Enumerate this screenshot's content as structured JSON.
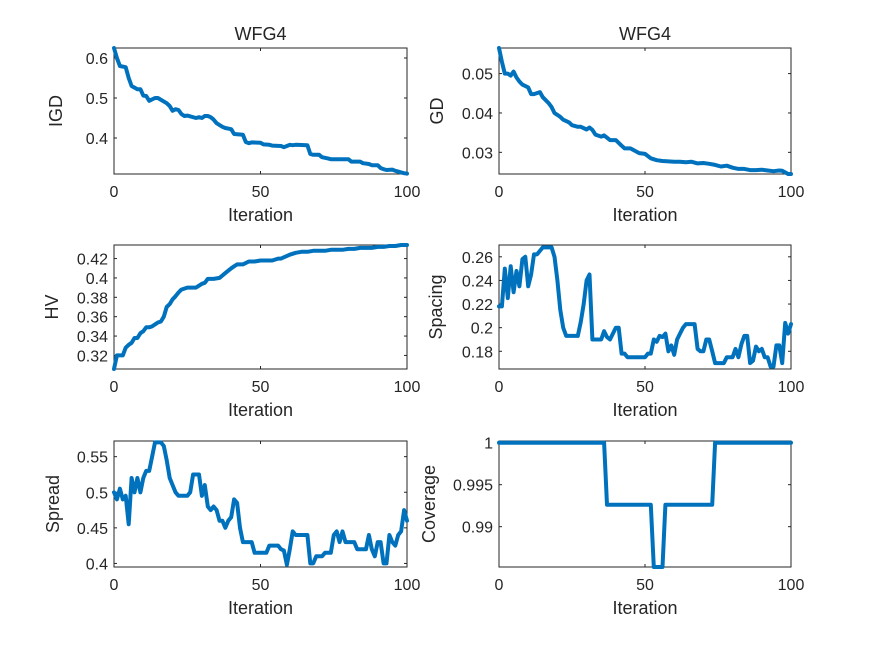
{
  "figure": {
    "background": "#ffffff",
    "line_color": "#0072BD",
    "axis_color": "#262626"
  },
  "chart_data": [
    {
      "type": "line",
      "title": "WFG4",
      "xlabel": "Iteration",
      "ylabel": "IGD",
      "xlim": [
        0,
        100
      ],
      "ylim": [
        0.31,
        0.625
      ],
      "xticks": [
        0,
        50,
        100
      ],
      "yticks": [
        0.4,
        0.5,
        0.6
      ],
      "ytick_labels": [
        "0.4",
        "0.5",
        "0.6"
      ],
      "series": [
        {
          "x": [
            0,
            1,
            2,
            4,
            5,
            6,
            8,
            9,
            10,
            11,
            12,
            14,
            15,
            18,
            19,
            20,
            21,
            22,
            23,
            24,
            25,
            28,
            29,
            30,
            31,
            32,
            33,
            34,
            35,
            37,
            38,
            40,
            41,
            44,
            45,
            46,
            47,
            50,
            51,
            53,
            54,
            57,
            58,
            59,
            60,
            61,
            62,
            66,
            67,
            68,
            70,
            71,
            73,
            74,
            75,
            80,
            81,
            84,
            85,
            87,
            88,
            90,
            91,
            92,
            93,
            95,
            96,
            97,
            98,
            99,
            100
          ],
          "y": [
            0.625,
            0.6,
            0.58,
            0.577,
            0.55,
            0.53,
            0.522,
            0.522,
            0.506,
            0.505,
            0.493,
            0.5,
            0.5,
            0.487,
            0.48,
            0.468,
            0.472,
            0.47,
            0.46,
            0.455,
            0.456,
            0.45,
            0.452,
            0.45,
            0.455,
            0.455,
            0.452,
            0.446,
            0.437,
            0.428,
            0.425,
            0.422,
            0.41,
            0.408,
            0.39,
            0.387,
            0.389,
            0.388,
            0.384,
            0.383,
            0.381,
            0.38,
            0.377,
            0.38,
            0.383,
            0.382,
            0.383,
            0.382,
            0.36,
            0.358,
            0.358,
            0.352,
            0.349,
            0.347,
            0.347,
            0.347,
            0.341,
            0.341,
            0.337,
            0.335,
            0.332,
            0.332,
            0.325,
            0.322,
            0.32,
            0.321,
            0.318,
            0.316,
            0.314,
            0.312,
            0.311
          ]
        }
      ]
    },
    {
      "type": "line",
      "title": "WFG4",
      "xlabel": "Iteration",
      "ylabel": "GD",
      "xlim": [
        0,
        100
      ],
      "ylim": [
        0.0245,
        0.0565
      ],
      "xticks": [
        0,
        50,
        100
      ],
      "yticks": [
        0.03,
        0.04,
        0.05
      ],
      "ytick_labels": [
        "0.03",
        "0.04",
        "0.05"
      ],
      "series": [
        {
          "x": [
            0,
            1,
            2,
            3,
            4,
            5,
            6,
            7,
            8,
            10,
            11,
            12,
            14,
            15,
            17,
            18,
            19,
            20,
            21,
            22,
            24,
            25,
            27,
            28,
            30,
            31,
            32,
            33,
            35,
            36,
            38,
            40,
            42,
            43,
            45,
            48,
            50,
            52,
            54,
            56,
            58,
            60,
            62,
            64,
            66,
            68,
            70,
            72,
            74,
            76,
            78,
            80,
            82,
            84,
            86,
            88,
            90,
            92,
            94,
            96,
            97,
            98,
            99,
            100
          ],
          "y": [
            0.0565,
            0.053,
            0.05,
            0.05,
            0.0495,
            0.0505,
            0.049,
            0.048,
            0.0472,
            0.0465,
            0.0448,
            0.0448,
            0.0453,
            0.044,
            0.0425,
            0.0415,
            0.04,
            0.0395,
            0.039,
            0.0383,
            0.0376,
            0.0369,
            0.0365,
            0.0365,
            0.0358,
            0.0363,
            0.0357,
            0.0345,
            0.034,
            0.0343,
            0.0331,
            0.0331,
            0.0317,
            0.031,
            0.031,
            0.0298,
            0.0296,
            0.0285,
            0.028,
            0.0278,
            0.0277,
            0.0276,
            0.0276,
            0.0275,
            0.0276,
            0.0272,
            0.0273,
            0.0271,
            0.0268,
            0.0264,
            0.0266,
            0.0261,
            0.0258,
            0.0258,
            0.0255,
            0.0255,
            0.0256,
            0.0254,
            0.0252,
            0.0254,
            0.0253,
            0.0249,
            0.0245,
            0.0245
          ]
        }
      ]
    },
    {
      "type": "line",
      "title": "",
      "xlabel": "Iteration",
      "ylabel": "HV",
      "xlim": [
        0,
        100
      ],
      "ylim": [
        0.306,
        0.434
      ],
      "xticks": [
        0,
        50,
        100
      ],
      "yticks": [
        0.32,
        0.34,
        0.36,
        0.38,
        0.4,
        0.42
      ],
      "ytick_labels": [
        "0.32",
        "0.34",
        "0.36",
        "0.38",
        "0.4",
        "0.42"
      ],
      "series": [
        {
          "x": [
            0,
            1,
            2,
            3,
            4,
            5,
            6,
            7,
            8,
            9,
            10,
            11,
            12,
            13,
            14,
            15,
            16,
            17,
            18,
            19,
            20,
            21,
            22,
            23,
            25,
            26,
            28,
            30,
            31,
            32,
            34,
            36,
            38,
            40,
            41,
            42,
            44,
            46,
            48,
            50,
            52,
            54,
            56,
            57,
            60,
            62,
            64,
            66,
            68,
            70,
            72,
            74,
            76,
            78,
            80,
            82,
            84,
            86,
            88,
            90,
            92,
            94,
            96,
            98,
            100
          ],
          "y": [
            0.306,
            0.32,
            0.32,
            0.32,
            0.328,
            0.331,
            0.333,
            0.338,
            0.338,
            0.343,
            0.345,
            0.349,
            0.349,
            0.35,
            0.352,
            0.354,
            0.355,
            0.36,
            0.37,
            0.373,
            0.378,
            0.381,
            0.385,
            0.388,
            0.39,
            0.39,
            0.39,
            0.394,
            0.395,
            0.399,
            0.399,
            0.4,
            0.405,
            0.41,
            0.412,
            0.414,
            0.414,
            0.417,
            0.417,
            0.418,
            0.418,
            0.418,
            0.42,
            0.42,
            0.424,
            0.426,
            0.427,
            0.427,
            0.428,
            0.428,
            0.428,
            0.429,
            0.429,
            0.429,
            0.43,
            0.43,
            0.431,
            0.431,
            0.431,
            0.432,
            0.432,
            0.433,
            0.433,
            0.434,
            0.434
          ]
        }
      ]
    },
    {
      "type": "line",
      "title": "",
      "xlabel": "Iteration",
      "ylabel": "Spacing",
      "xlim": [
        0,
        100
      ],
      "ylim": [
        0.165,
        0.27
      ],
      "xticks": [
        0,
        50,
        100
      ],
      "yticks": [
        0.18,
        0.2,
        0.22,
        0.24,
        0.26
      ],
      "ytick_labels": [
        "0.18",
        "0.2",
        "0.22",
        "0.24",
        "0.26"
      ],
      "series": [
        {
          "x": [
            0,
            1,
            2,
            3,
            4,
            5,
            6,
            7,
            8,
            9,
            10,
            11,
            12,
            13,
            14,
            15,
            16,
            17,
            18,
            19,
            20,
            21,
            22,
            23,
            24,
            25,
            26,
            27,
            28,
            29,
            30,
            31,
            32,
            33,
            34,
            35,
            36,
            37,
            38,
            39,
            40,
            41,
            42,
            43,
            44,
            45,
            46,
            47,
            48,
            49,
            50,
            51,
            52,
            53,
            54,
            55,
            56,
            57,
            58,
            59,
            60,
            61,
            62,
            63,
            64,
            65,
            66,
            67,
            68,
            69,
            70,
            71,
            72,
            73,
            74,
            75,
            76,
            77,
            78,
            79,
            80,
            81,
            82,
            83,
            84,
            85,
            86,
            87,
            88,
            89,
            90,
            91,
            92,
            93,
            94,
            95,
            96,
            97,
            98,
            99,
            100
          ],
          "y": [
            0.218,
            0.218,
            0.25,
            0.225,
            0.252,
            0.23,
            0.248,
            0.235,
            0.258,
            0.26,
            0.235,
            0.245,
            0.262,
            0.262,
            0.265,
            0.268,
            0.268,
            0.268,
            0.268,
            0.26,
            0.24,
            0.215,
            0.2,
            0.193,
            0.193,
            0.193,
            0.193,
            0.193,
            0.205,
            0.22,
            0.24,
            0.245,
            0.19,
            0.19,
            0.19,
            0.19,
            0.197,
            0.192,
            0.19,
            0.195,
            0.2,
            0.2,
            0.178,
            0.178,
            0.175,
            0.175,
            0.175,
            0.175,
            0.175,
            0.175,
            0.175,
            0.178,
            0.178,
            0.19,
            0.188,
            0.193,
            0.192,
            0.195,
            0.18,
            0.185,
            0.177,
            0.19,
            0.195,
            0.2,
            0.203,
            0.203,
            0.203,
            0.203,
            0.182,
            0.18,
            0.18,
            0.19,
            0.19,
            0.18,
            0.17,
            0.17,
            0.17,
            0.17,
            0.175,
            0.175,
            0.175,
            0.182,
            0.175,
            0.186,
            0.193,
            0.193,
            0.17,
            0.172,
            0.184,
            0.18,
            0.182,
            0.175,
            0.175,
            0.167,
            0.167,
            0.185,
            0.185,
            0.17,
            0.204,
            0.195,
            0.203
          ]
        }
      ]
    },
    {
      "type": "line",
      "title": "",
      "xlabel": "Iteration",
      "ylabel": "Spread",
      "xlim": [
        0,
        100
      ],
      "ylim": [
        0.395,
        0.572
      ],
      "xticks": [
        0,
        50,
        100
      ],
      "yticks": [
        0.4,
        0.45,
        0.5,
        0.55
      ],
      "ytick_labels": [
        "0.4",
        "0.45",
        "0.5",
        "0.55"
      ],
      "series": [
        {
          "x": [
            0,
            1,
            2,
            3,
            4,
            5,
            6,
            7,
            8,
            9,
            10,
            11,
            12,
            13,
            14,
            15,
            16,
            17,
            18,
            19,
            20,
            21,
            22,
            23,
            24,
            25,
            26,
            27,
            28,
            29,
            30,
            31,
            32,
            33,
            34,
            35,
            36,
            37,
            38,
            39,
            40,
            41,
            42,
            43,
            44,
            45,
            46,
            47,
            48,
            49,
            50,
            51,
            52,
            53,
            54,
            55,
            56,
            57,
            58,
            59,
            60,
            61,
            62,
            63,
            64,
            65,
            66,
            67,
            68,
            69,
            70,
            71,
            72,
            73,
            74,
            75,
            76,
            77,
            78,
            79,
            80,
            81,
            82,
            83,
            84,
            85,
            86,
            87,
            88,
            89,
            90,
            91,
            92,
            93,
            94,
            95,
            96,
            97,
            98,
            99,
            100
          ],
          "y": [
            0.5,
            0.49,
            0.505,
            0.49,
            0.495,
            0.455,
            0.52,
            0.5,
            0.52,
            0.5,
            0.52,
            0.53,
            0.53,
            0.55,
            0.57,
            0.57,
            0.57,
            0.565,
            0.545,
            0.52,
            0.51,
            0.5,
            0.495,
            0.495,
            0.495,
            0.495,
            0.5,
            0.525,
            0.525,
            0.525,
            0.495,
            0.51,
            0.48,
            0.475,
            0.48,
            0.475,
            0.46,
            0.46,
            0.45,
            0.46,
            0.465,
            0.49,
            0.485,
            0.45,
            0.43,
            0.43,
            0.43,
            0.43,
            0.415,
            0.415,
            0.415,
            0.415,
            0.415,
            0.425,
            0.425,
            0.425,
            0.425,
            0.42,
            0.418,
            0.398,
            0.42,
            0.445,
            0.44,
            0.44,
            0.44,
            0.44,
            0.44,
            0.4,
            0.4,
            0.41,
            0.41,
            0.41,
            0.415,
            0.415,
            0.415,
            0.44,
            0.445,
            0.43,
            0.445,
            0.43,
            0.43,
            0.43,
            0.43,
            0.42,
            0.42,
            0.42,
            0.42,
            0.44,
            0.42,
            0.41,
            0.43,
            0.43,
            0.4,
            0.4,
            0.44,
            0.43,
            0.425,
            0.44,
            0.445,
            0.475,
            0.46
          ]
        }
      ]
    },
    {
      "type": "line",
      "title": "",
      "xlabel": "Iteration",
      "ylabel": "Coverage",
      "xlim": [
        0,
        100
      ],
      "ylim": [
        0.9852,
        1.0002
      ],
      "xticks": [
        0,
        50,
        100
      ],
      "yticks": [
        0.99,
        0.995,
        1.0
      ],
      "ytick_labels": [
        "0.99",
        "0.995",
        "1"
      ],
      "series": [
        {
          "x": [
            0,
            36,
            37,
            52,
            53,
            56,
            57,
            73,
            74,
            100
          ],
          "y": [
            1.0,
            1.0,
            0.9926,
            0.9926,
            0.9852,
            0.9852,
            0.9926,
            0.9926,
            1.0,
            1.0
          ]
        }
      ]
    }
  ]
}
